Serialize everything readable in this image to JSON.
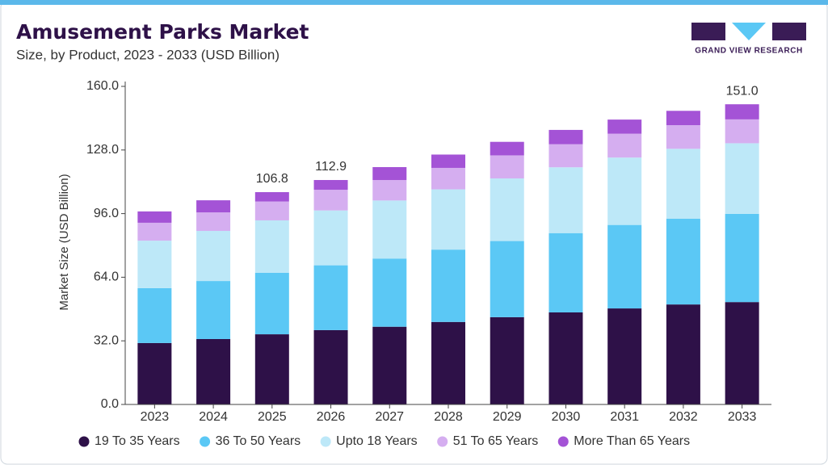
{
  "chart_data": {
    "type": "stacked_bar",
    "title": "Amusement Parks Market",
    "subtitle": "Size, by Product, 2023 - 2033 (USD Billion)",
    "y_label": "Market Size (USD Billion)",
    "brand": "GRAND VIEW RESEARCH",
    "categories": [
      "2023",
      "2024",
      "2025",
      "2026",
      "2027",
      "2028",
      "2029",
      "2030",
      "2031",
      "2032",
      "2033"
    ],
    "series": [
      {
        "name": "19 To 35 Years",
        "color": "#2e1148",
        "values": [
          30.9,
          32.9,
          35.3,
          37.4,
          39.1,
          41.5,
          43.9,
          46.3,
          48.3,
          50.3,
          51.5
        ]
      },
      {
        "name": "36 To 50 Years",
        "color": "#5bc8f5",
        "values": [
          27.6,
          29.2,
          30.9,
          32.6,
          34.3,
          36.4,
          38.3,
          39.9,
          42.0,
          43.1,
          44.4
        ]
      },
      {
        "name": "Upto 18 Years",
        "color": "#bde8f8",
        "values": [
          23.9,
          25.2,
          26.4,
          27.6,
          29.2,
          30.3,
          31.5,
          33.1,
          33.9,
          35.2,
          35.5
        ]
      },
      {
        "name": "51 To 65 Years",
        "color": "#d5aef0",
        "values": [
          9.0,
          9.3,
          9.5,
          10.4,
          10.3,
          10.8,
          11.6,
          11.6,
          12.0,
          11.9,
          12.0
        ]
      },
      {
        "name": "More Than 65 Years",
        "color": "#a453d6",
        "values": [
          5.7,
          6.1,
          4.7,
          4.9,
          6.5,
          6.7,
          6.8,
          7.2,
          7.1,
          7.2,
          7.6
        ]
      }
    ],
    "annotations": [
      {
        "x": "2025",
        "label": "106.8"
      },
      {
        "x": "2026",
        "label": "112.9"
      },
      {
        "x": "2033",
        "label": "151.0"
      }
    ],
    "ylim": [
      0,
      160
    ],
    "yticks": [
      {
        "value": 0,
        "label": "0.0"
      },
      {
        "value": 32,
        "label": "32.0"
      },
      {
        "value": 64,
        "label": "64.0"
      },
      {
        "value": 96,
        "label": "96.0"
      },
      {
        "value": 128,
        "label": "128.0"
      },
      {
        "value": 160,
        "label": "160.0"
      }
    ]
  }
}
